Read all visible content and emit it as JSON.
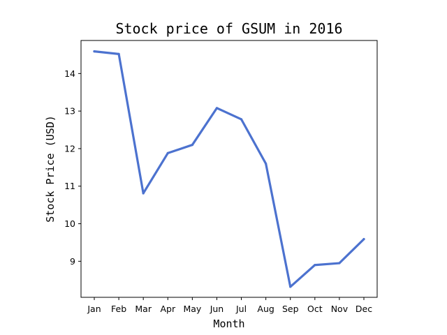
{
  "chart_data": {
    "type": "line",
    "title": "Stock price of GSUM in 2016",
    "xlabel": "Month",
    "ylabel": "Stock Price (USD)",
    "categories": [
      "Jan",
      "Feb",
      "Mar",
      "Apr",
      "May",
      "Jun",
      "Jul",
      "Aug",
      "Sep",
      "Oct",
      "Nov",
      "Dec"
    ],
    "series": [
      {
        "values": [
          14.59,
          14.52,
          10.81,
          11.88,
          12.1,
          13.08,
          12.78,
          11.6,
          8.32,
          8.9,
          8.95,
          9.59
        ],
        "color": "#4c72cf"
      }
    ],
    "yticks": [
      9,
      10,
      11,
      12,
      13,
      14
    ],
    "ylim": [
      8.04,
      14.88
    ],
    "grid": false,
    "legend": "none"
  }
}
